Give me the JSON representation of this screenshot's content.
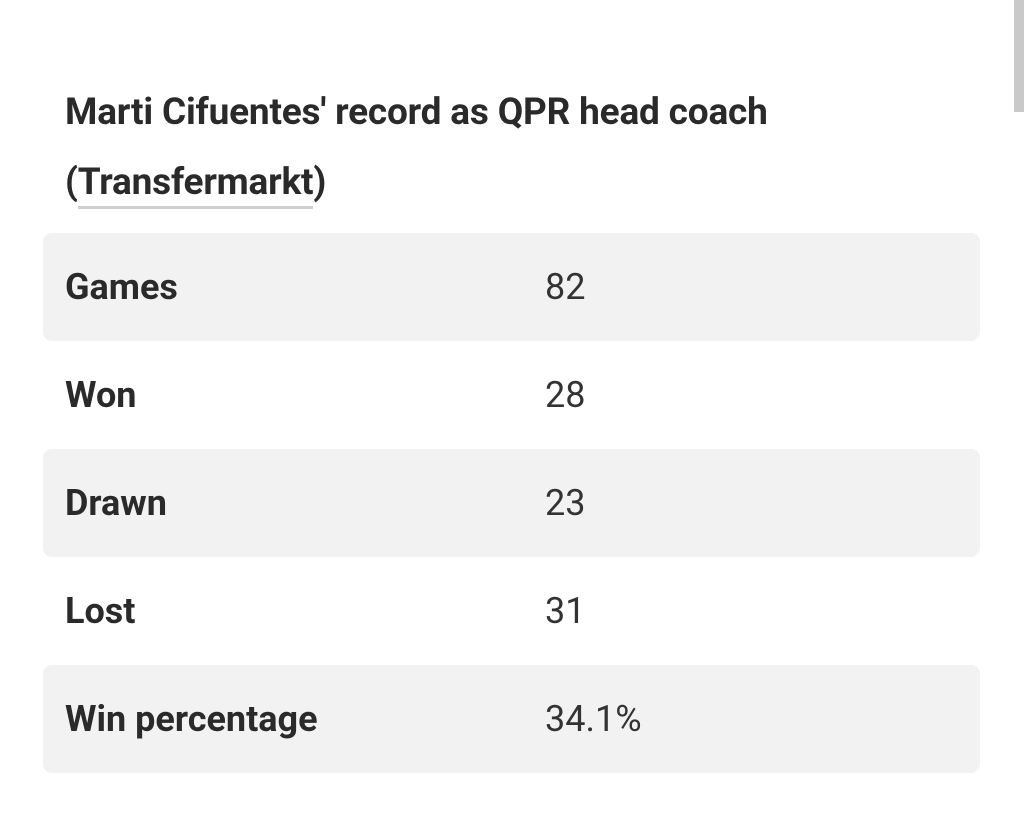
{
  "header": {
    "title": "Marti Cifuentes' record as QPR head coach",
    "source_open": "(",
    "source_link": "Transfermarkt",
    "source_close": ")"
  },
  "table": {
    "rows": [
      [
        "Games",
        "82"
      ],
      [
        "Won",
        "28"
      ],
      [
        "Drawn",
        "23"
      ],
      [
        "Lost",
        "31"
      ],
      [
        "Win percentage",
        "34.1%"
      ]
    ]
  }
}
